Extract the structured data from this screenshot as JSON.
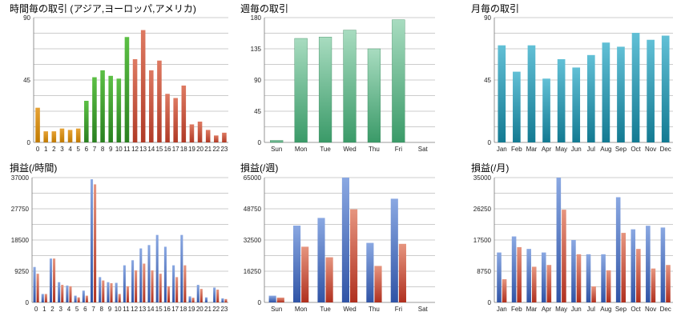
{
  "colors": {
    "gold": "#d08a10",
    "green": "#3d9a2c",
    "red": "#c2533e",
    "teal": "#1a8ea8",
    "mint_top": "#a8dcc0",
    "mint_bottom": "#3a9a68",
    "blue": "#4a6ec0",
    "profit_red": "#c0463a"
  },
  "chart_data": [
    {
      "id": "hourly-trades",
      "type": "bar",
      "title": "時間毎の取引 (アジア,ヨーロッパ,アメリカ)",
      "categories": [
        "0",
        "1",
        "2",
        "3",
        "4",
        "5",
        "6",
        "7",
        "8",
        "9",
        "10",
        "11",
        "12",
        "13",
        "14",
        "15",
        "16",
        "17",
        "18",
        "19",
        "20",
        "21",
        "22",
        "23"
      ],
      "values": [
        25,
        8,
        8,
        10,
        9,
        10,
        30,
        47,
        52,
        48,
        46,
        76,
        60,
        81,
        52,
        59,
        35,
        32,
        41,
        13,
        15,
        9,
        5,
        7
      ],
      "ylim": [
        0,
        90
      ],
      "yticks": [
        "0",
        "45",
        "90"
      ]
    },
    {
      "id": "weekly-trades",
      "type": "bar",
      "title": "週毎の取引",
      "categories": [
        "Sun",
        "Mon",
        "Tue",
        "Wed",
        "Thu",
        "Fri",
        "Sat"
      ],
      "values": [
        3,
        150,
        152,
        162,
        135,
        177,
        0
      ],
      "ylim": [
        0,
        180
      ],
      "yticks": [
        "0",
        "45",
        "90",
        "135",
        "180"
      ]
    },
    {
      "id": "monthly-trades",
      "type": "bar",
      "title": "月毎の取引",
      "categories": [
        "Jan",
        "Feb",
        "Mar",
        "Apr",
        "May",
        "Jun",
        "Jul",
        "Aug",
        "Sep",
        "Oct",
        "Nov",
        "Dec"
      ],
      "values": [
        70,
        51,
        70,
        46,
        60,
        54,
        63,
        72,
        69,
        79,
        74,
        77
      ],
      "ylim": [
        0,
        90
      ],
      "yticks": [
        "0",
        "45",
        "90"
      ]
    },
    {
      "id": "hourly-pl",
      "type": "bar",
      "title": "損益(/時間)",
      "categories": [
        "0",
        "1",
        "2",
        "3",
        "4",
        "5",
        "6",
        "7",
        "8",
        "9",
        "10",
        "11",
        "12",
        "13",
        "14",
        "15",
        "16",
        "17",
        "18",
        "19",
        "20",
        "21",
        "22",
        "23"
      ],
      "series": [
        {
          "name": "blue",
          "values": [
            10500,
            2500,
            13000,
            6000,
            5000,
            2000,
            3500,
            36500,
            7500,
            6000,
            5800,
            11000,
            12500,
            16000,
            17000,
            20000,
            16500,
            11000,
            20000,
            1800,
            5200,
            1500,
            4400,
            1200
          ]
        },
        {
          "name": "red",
          "values": [
            8500,
            2500,
            13000,
            5200,
            4800,
            1500,
            2000,
            35000,
            6500,
            5700,
            2500,
            4800,
            9500,
            11500,
            9500,
            8500,
            4800,
            7500,
            11000,
            1400,
            4000,
            0,
            3800,
            1000
          ]
        }
      ],
      "ylim": [
        0,
        37000
      ],
      "yticks": [
        "0",
        "9250",
        "18500",
        "27750",
        "37000"
      ]
    },
    {
      "id": "weekly-pl",
      "type": "bar",
      "title": "損益(/週)",
      "categories": [
        "Sun",
        "Mon",
        "Tue",
        "Wed",
        "Thu",
        "Fri",
        "Sat"
      ],
      "series": [
        {
          "name": "blue",
          "values": [
            3500,
            40000,
            44000,
            65000,
            31000,
            54000,
            0
          ]
        },
        {
          "name": "red",
          "values": [
            2500,
            29000,
            23500,
            48500,
            19000,
            30500,
            0
          ]
        }
      ],
      "ylim": [
        0,
        65000
      ],
      "yticks": [
        "0",
        "16250",
        "32500",
        "48750",
        "65000"
      ]
    },
    {
      "id": "monthly-pl",
      "type": "bar",
      "title": "損益(/月)",
      "categories": [
        "Jan",
        "Feb",
        "Mar",
        "Apr",
        "May",
        "Jun",
        "Jul",
        "Aug",
        "Sep",
        "Oct",
        "Nov",
        "Dec"
      ],
      "series": [
        {
          "name": "blue",
          "values": [
            14000,
            18500,
            15000,
            14000,
            35000,
            17500,
            13500,
            13500,
            29500,
            20500,
            21500,
            21000
          ]
        },
        {
          "name": "red",
          "values": [
            6500,
            15500,
            10000,
            10500,
            26000,
            13500,
            4500,
            9000,
            19500,
            15000,
            9500,
            10500
          ]
        }
      ],
      "ylim": [
        0,
        35000
      ],
      "yticks": [
        "0",
        "8750",
        "17500",
        "26250",
        "35000"
      ]
    }
  ]
}
